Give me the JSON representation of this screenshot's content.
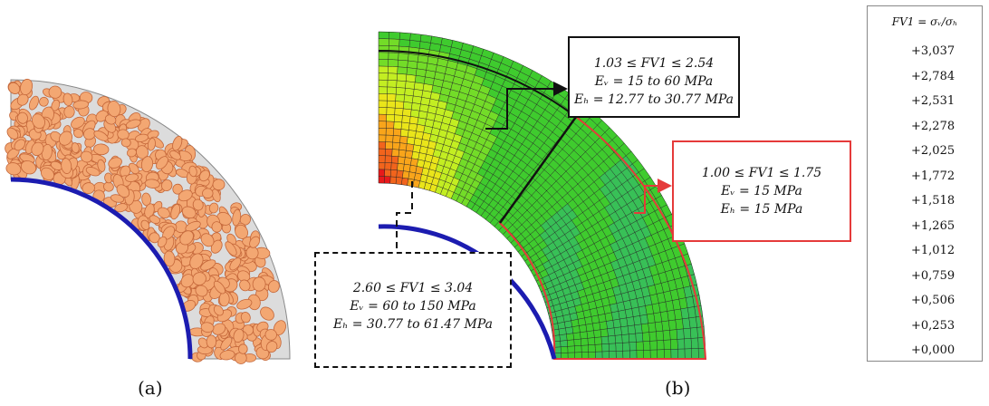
{
  "panel_a": {
    "caption": "(a)"
  },
  "panel_b": {
    "caption": "(b)",
    "callouts": {
      "top": {
        "line1": "1.03  ≤ FV1  ≤ 2.54",
        "line2": "Eᵥ = 15 to 60 MPa",
        "line3": "Eₕ = 12.77 to 30.77 MPa"
      },
      "right": {
        "line1": "1.00  ≤ FV1  ≤ 1.75",
        "line2": "Eᵥ = 15 MPa",
        "line3": "Eₕ = 15 MPa"
      },
      "bottom": {
        "line1": "2.60  ≤ FV1  ≤ 3.04",
        "line2": "Eᵥ = 60 to 150 MPa",
        "line3": "Eₕ = 30.77 to 61.47 MPa"
      }
    }
  },
  "legend": {
    "title": "FV1 =  σᵥ/σₕ",
    "labels": [
      "+3,037",
      "+2,784",
      "+2,531",
      "+2,278",
      "+2,025",
      "+1,772",
      "+1,518",
      "+1,265",
      "+1,012",
      "+0,759",
      "+0,506",
      "+0,253",
      "+0,000"
    ],
    "colors": [
      "#e8191b",
      "#f2641c",
      "#f9a51a",
      "#eae51a",
      "#c3ee22",
      "#73dc28",
      "#3fcb2e",
      "#38c057",
      "#2ad39c",
      "#23e6de",
      "#23b3ee",
      "#1a6ee8",
      "#0a10e0"
    ]
  },
  "colors": {
    "pipe": "#1c1cb0",
    "particle_fill": "#f3a772",
    "particle_stroke": "#c4673a",
    "matrix": "#dcdcdc",
    "callout_red": "#e53a3a"
  }
}
